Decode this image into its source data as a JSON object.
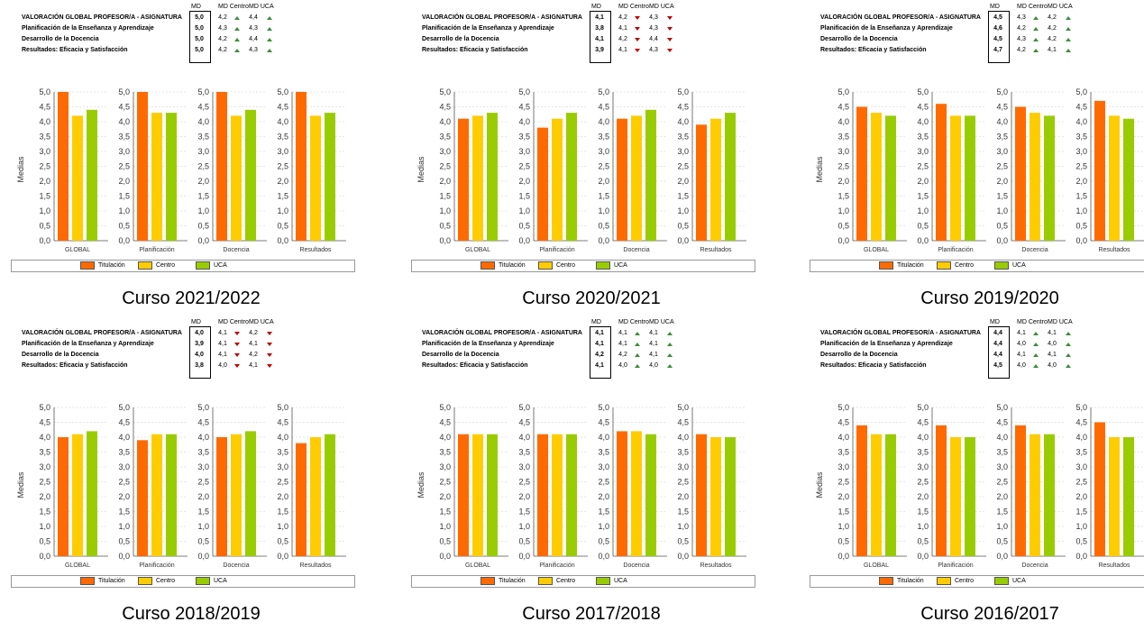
{
  "headers": {
    "md": "MD",
    "md_centro": "MD Centro",
    "md_uca": "MD UCA"
  },
  "row_labels": [
    "VALORACIÓN GLOBAL PROFESOR/A - ASIGNATURA",
    "Planificación de la Enseñanza y Aprendizaje",
    "Desarrollo de la Docencia",
    "Resultados: Eficacia y Satisfacción"
  ],
  "legend": [
    "Titulación",
    "Centro",
    "UCA"
  ],
  "colors": {
    "titulacion": "#ff6a00",
    "centro": "#ffcc00",
    "uca": "#99cc00"
  },
  "chart_meta": {
    "ylabel": "Medias",
    "ylim": [
      0,
      5
    ],
    "ticks": [
      "0,0",
      "0,5",
      "1,0",
      "1,5",
      "2,0",
      "2,5",
      "3,0",
      "3,5",
      "4,0",
      "4,5",
      "5,0"
    ]
  },
  "chart_data": [
    {
      "type": "bar",
      "caption": "Curso 2021/2022",
      "categories": [
        "GLOBAL",
        "Planificación",
        "Docencia",
        "Resultados"
      ],
      "md": [
        "5,0",
        "5,0",
        "5,0",
        "5,0"
      ],
      "centro": [
        "4,2",
        "4,3",
        "4,2",
        "4,2"
      ],
      "uca": [
        "4,4",
        "4,3",
        "4,4",
        "4,3"
      ],
      "centro_arrow": [
        "up",
        "up",
        "up",
        "up"
      ],
      "uca_arrow": [
        "up",
        "up",
        "up",
        "up"
      ],
      "series": [
        {
          "name": "Titulación",
          "values": [
            5.0,
            5.0,
            5.0,
            5.0
          ]
        },
        {
          "name": "Centro",
          "values": [
            4.2,
            4.3,
            4.2,
            4.2
          ]
        },
        {
          "name": "UCA",
          "values": [
            4.4,
            4.3,
            4.4,
            4.3
          ]
        }
      ]
    },
    {
      "type": "bar",
      "caption": "Curso 2020/2021",
      "categories": [
        "GLOBAL",
        "Planificación",
        "Docencia",
        "Resultados"
      ],
      "md": [
        "4,1",
        "3,8",
        "4,1",
        "3,9"
      ],
      "centro": [
        "4,2",
        "4,1",
        "4,2",
        "4,1"
      ],
      "uca": [
        "4,3",
        "4,3",
        "4,4",
        "4,3"
      ],
      "centro_arrow": [
        "down",
        "down",
        "down",
        "down"
      ],
      "uca_arrow": [
        "down",
        "down",
        "down",
        "down"
      ],
      "series": [
        {
          "name": "Titulación",
          "values": [
            4.1,
            3.8,
            4.1,
            3.9
          ]
        },
        {
          "name": "Centro",
          "values": [
            4.2,
            4.1,
            4.2,
            4.1
          ]
        },
        {
          "name": "UCA",
          "values": [
            4.3,
            4.3,
            4.4,
            4.3
          ]
        }
      ]
    },
    {
      "type": "bar",
      "caption": "Curso 2019/2020",
      "categories": [
        "GLOBAL",
        "Planificación",
        "Docencia",
        "Resultados"
      ],
      "md": [
        "4,5",
        "4,6",
        "4,5",
        "4,7"
      ],
      "centro": [
        "4,3",
        "4,2",
        "4,3",
        "4,2"
      ],
      "uca": [
        "4,2",
        "4,2",
        "4,2",
        "4,1"
      ],
      "centro_arrow": [
        "up",
        "up",
        "up",
        "up"
      ],
      "uca_arrow": [
        "up",
        "up",
        "up",
        "up"
      ],
      "series": [
        {
          "name": "Titulación",
          "values": [
            4.5,
            4.6,
            4.5,
            4.7
          ]
        },
        {
          "name": "Centro",
          "values": [
            4.3,
            4.2,
            4.3,
            4.2
          ]
        },
        {
          "name": "UCA",
          "values": [
            4.2,
            4.2,
            4.2,
            4.1
          ]
        }
      ]
    },
    {
      "type": "bar",
      "caption": "Curso 2018/2019",
      "categories": [
        "GLOBAL",
        "Planificación",
        "Docencia",
        "Resultados"
      ],
      "md": [
        "4,0",
        "3,9",
        "4,0",
        "3,8"
      ],
      "centro": [
        "4,1",
        "4,1",
        "4,1",
        "4,0"
      ],
      "uca": [
        "4,2",
        "4,1",
        "4,2",
        "4,1"
      ],
      "centro_arrow": [
        "down",
        "down",
        "down",
        "down"
      ],
      "uca_arrow": [
        "down",
        "down",
        "down",
        "down"
      ],
      "series": [
        {
          "name": "Titulación",
          "values": [
            4.0,
            3.9,
            4.0,
            3.8
          ]
        },
        {
          "name": "Centro",
          "values": [
            4.1,
            4.1,
            4.1,
            4.0
          ]
        },
        {
          "name": "UCA",
          "values": [
            4.2,
            4.1,
            4.2,
            4.1
          ]
        }
      ]
    },
    {
      "type": "bar",
      "caption": "Curso 2017/2018",
      "categories": [
        "GLOBAL",
        "Planificación",
        "Docencia",
        "Resultados"
      ],
      "md": [
        "4,1",
        "4,1",
        "4,2",
        "4,1"
      ],
      "centro": [
        "4,1",
        "4,1",
        "4,2",
        "4,0"
      ],
      "uca": [
        "4,1",
        "4,1",
        "4,1",
        "4,0"
      ],
      "centro_arrow": [
        "up",
        "up",
        "up",
        "up"
      ],
      "uca_arrow": [
        "up",
        "up",
        "up",
        "up"
      ],
      "series": [
        {
          "name": "Titulación",
          "values": [
            4.1,
            4.1,
            4.2,
            4.1
          ]
        },
        {
          "name": "Centro",
          "values": [
            4.1,
            4.1,
            4.2,
            4.0
          ]
        },
        {
          "name": "UCA",
          "values": [
            4.1,
            4.1,
            4.1,
            4.0
          ]
        }
      ]
    },
    {
      "type": "bar",
      "caption": "Curso 2016/2017",
      "categories": [
        "GLOBAL",
        "Planificación",
        "Docencia",
        "Resultados"
      ],
      "md": [
        "4,4",
        "4,4",
        "4,4",
        "4,5"
      ],
      "centro": [
        "4,1",
        "4,0",
        "4,1",
        "4,0"
      ],
      "uca": [
        "4,1",
        "4,0",
        "4,1",
        "4,0"
      ],
      "centro_arrow": [
        "up",
        "up",
        "up",
        "up"
      ],
      "uca_arrow": [
        "up",
        "up",
        "up",
        "up"
      ],
      "series": [
        {
          "name": "Titulación",
          "values": [
            4.4,
            4.4,
            4.4,
            4.5
          ]
        },
        {
          "name": "Centro",
          "values": [
            4.1,
            4.0,
            4.1,
            4.0
          ]
        },
        {
          "name": "UCA",
          "values": [
            4.1,
            4.0,
            4.1,
            4.0
          ]
        }
      ]
    }
  ]
}
